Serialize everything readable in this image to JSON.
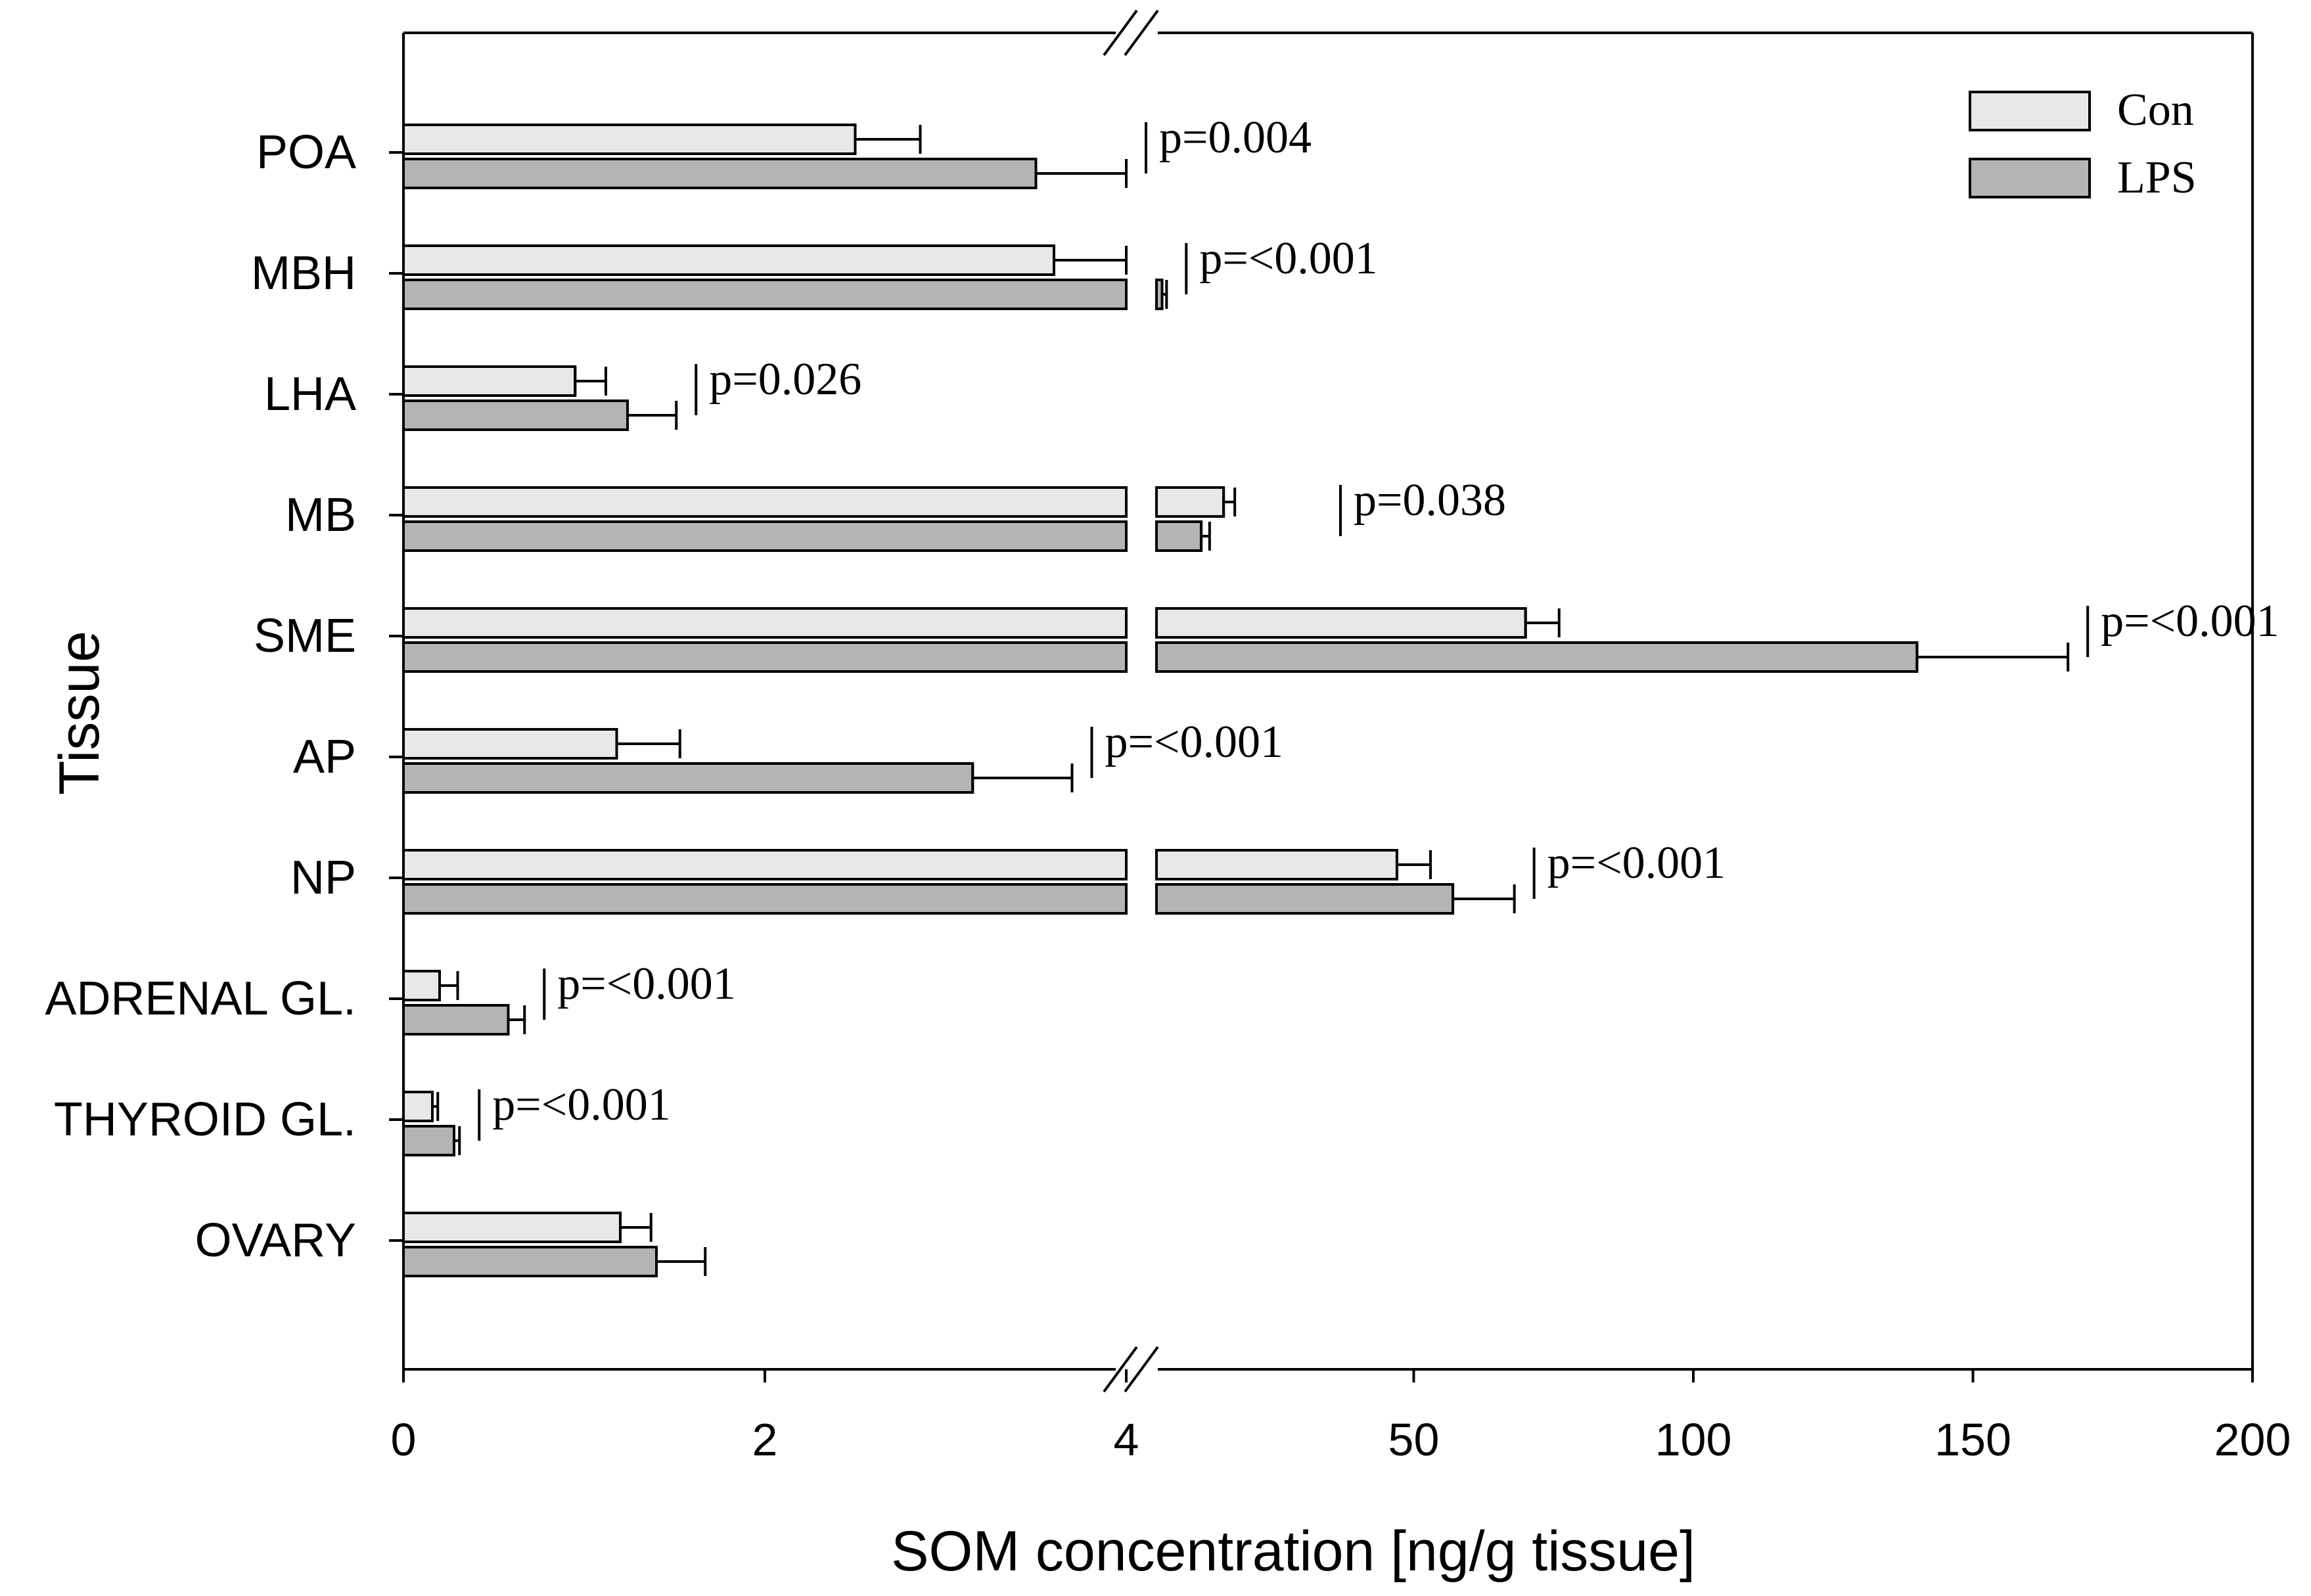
{
  "chart_data": {
    "type": "bar",
    "orientation": "horizontal",
    "xlabel": "SOM concentration [ng/g tissue]",
    "ylabel": "Tissue",
    "x_axis": {
      "broken": true,
      "segment1": {
        "range": [
          0,
          4
        ],
        "ticks": [
          "0",
          "2",
          "4"
        ]
      },
      "segment2": {
        "range": [
          4,
          200
        ],
        "ticks": [
          "50",
          "100",
          "150",
          "200"
        ]
      }
    },
    "legend_position": "top-right",
    "categories": [
      "POA",
      "MBH",
      "LHA",
      "MB",
      "SME",
      "AP",
      "NP",
      "ADRENAL GL.",
      "THYROID GL.",
      "OVARY"
    ],
    "series": [
      {
        "name": "Con",
        "color": "#e8e8e8",
        "values": [
          2.5,
          3.6,
          0.95,
          16,
          70,
          1.18,
          47,
          0.2,
          0.16,
          1.2
        ],
        "errors": [
          0.36,
          0.42,
          0.17,
          2.0,
          6.0,
          0.35,
          6.0,
          0.1,
          0.03,
          0.17
        ]
      },
      {
        "name": "LPS",
        "color": "#b4b4b4",
        "values": [
          3.5,
          4.0,
          1.24,
          12,
          140,
          3.15,
          57,
          0.58,
          0.28,
          1.4
        ],
        "errors": [
          0.5,
          0.0,
          0.27,
          1.5,
          27,
          0.55,
          11,
          0.09,
          0.03,
          0.27
        ]
      }
    ],
    "lps_overflow_bar": {
      "category": "MBH",
      "value": 5,
      "error": 0.8
    },
    "annotations": [
      {
        "category": "POA",
        "text": "p=0.004"
      },
      {
        "category": "MBH",
        "text": "p=<0.001"
      },
      {
        "category": "LHA",
        "text": "p=0.026"
      },
      {
        "category": "MB",
        "text": "p=0.038"
      },
      {
        "category": "SME",
        "text": "p=<0.001"
      },
      {
        "category": "AP",
        "text": "p=<0.001"
      },
      {
        "category": "NP",
        "text": "p=<0.001"
      },
      {
        "category": "ADRENAL GL.",
        "text": "p=<0.001"
      },
      {
        "category": "THYROID GL.",
        "text": "p=<0.001"
      },
      {
        "category": "OVARY",
        "text": ""
      }
    ]
  }
}
